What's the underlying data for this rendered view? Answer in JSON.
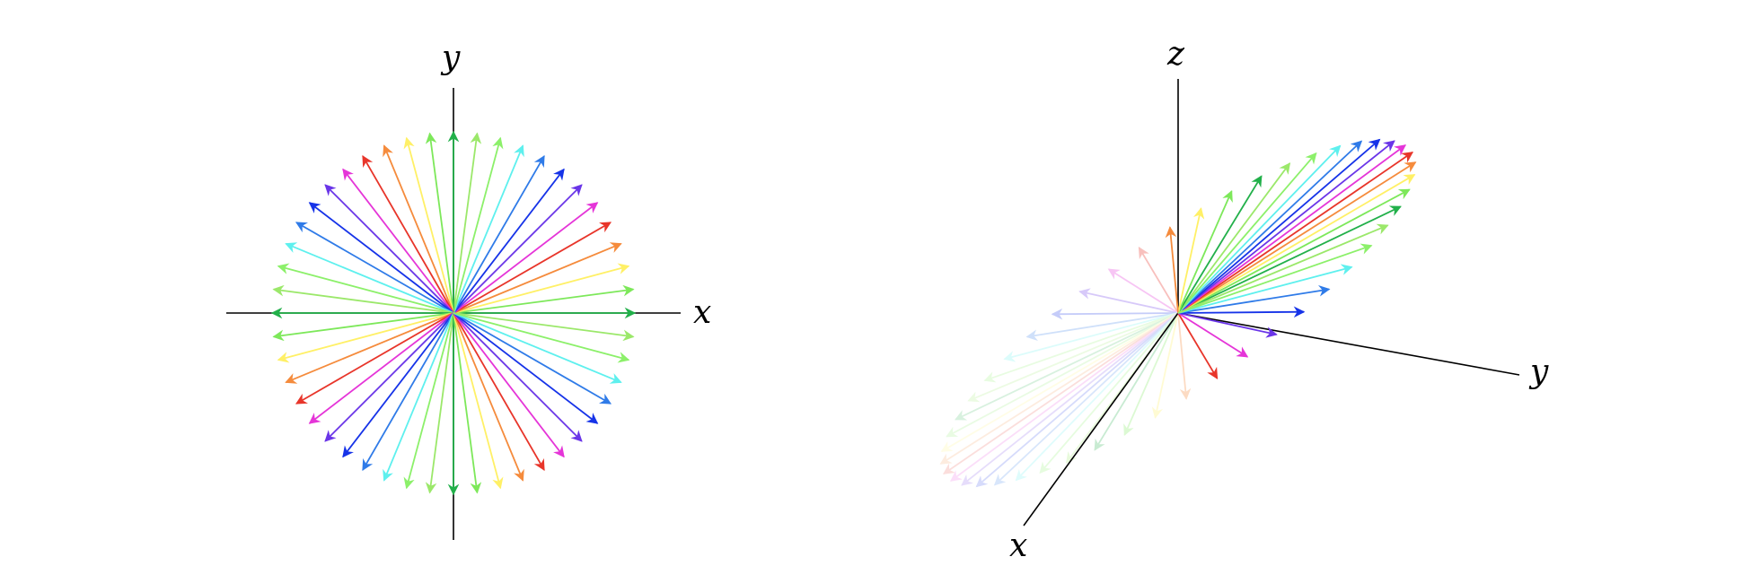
{
  "left_panel": {
    "axis_labels": {
      "x": "x",
      "y": "y"
    },
    "vector_count": 48,
    "vector_length": 1.0
  },
  "right_panel": {
    "axis_labels": {
      "x": "x",
      "y": "y",
      "z": "z"
    },
    "vector_count": 48,
    "vector_length": 1.0,
    "far_side_faded": true
  },
  "palette": [
    "#22b04a",
    "#7de85a",
    "#fff066",
    "#f58b3c",
    "#e8352a",
    "#e535d8",
    "#6a35e8",
    "#1633e8",
    "#2f7be8",
    "#5ef0ee",
    "#8cf06a",
    "#9be86a"
  ]
}
